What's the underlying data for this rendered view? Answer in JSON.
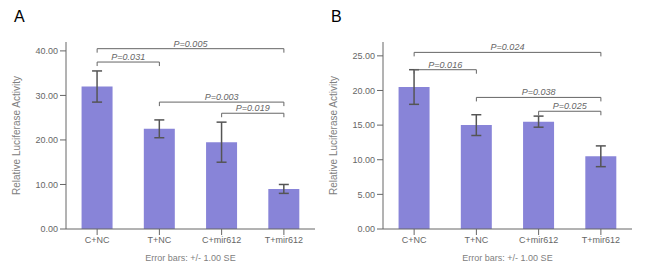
{
  "chart_data": [
    {
      "type": "bar",
      "title": "A",
      "categories": [
        "C+NC",
        "T+NC",
        "C+mir612",
        "T+mir612"
      ],
      "values": [
        32.0,
        22.5,
        19.5,
        9.0
      ],
      "errors": [
        3.5,
        2.0,
        4.5,
        1.0
      ],
      "ylim": [
        0,
        42
      ],
      "yticks": [
        {
          "value": 0,
          "label": "0.00"
        },
        {
          "value": 10,
          "label": "10.00"
        },
        {
          "value": 20,
          "label": "20.00"
        },
        {
          "value": 30,
          "label": "30.00"
        },
        {
          "value": 40,
          "label": "40.00"
        }
      ],
      "ylabel": "Relative Luciferase Activity",
      "xlabel": "Error bars: +/- 1.00 SE",
      "color": "#8884d8",
      "significance": [
        {
          "x1": "C+NC",
          "x2": "T+NC",
          "y": 37.5,
          "label": "P=0.031",
          "color": "#666666"
        },
        {
          "x1": "C+NC",
          "x2": "T+mir612",
          "y": 40.5,
          "label": "P=0.005",
          "color": "#666666"
        },
        {
          "x1": "T+NC",
          "x2": "T+mir612",
          "y": 28.5,
          "label": "P=0.003",
          "color": "#666666"
        },
        {
          "x1": "C+mir612",
          "x2": "T+mir612",
          "y": 26.0,
          "label": "P=0.019",
          "color": "#666666"
        }
      ]
    },
    {
      "type": "bar",
      "title": "B",
      "categories": [
        "C+NC",
        "T+NC",
        "C+mir612",
        "T+mir612"
      ],
      "values": [
        20.5,
        15.0,
        15.5,
        10.5
      ],
      "errors": [
        2.5,
        1.5,
        0.8,
        1.5
      ],
      "ylim": [
        0,
        27
      ],
      "yticks": [
        {
          "value": 0,
          "label": "0.00"
        },
        {
          "value": 5,
          "label": "5.00"
        },
        {
          "value": 10,
          "label": "10.00"
        },
        {
          "value": 15,
          "label": "15.00"
        },
        {
          "value": 20,
          "label": "20.00"
        },
        {
          "value": 25,
          "label": "25.00"
        }
      ],
      "ylabel": "Relative Luciferase Activity",
      "xlabel": "Error bars: +/- 1.00 SE",
      "color": "#8884d8",
      "significance": [
        {
          "x1": "C+NC",
          "x2": "T+NC",
          "y": 23.0,
          "label": "P=0.016",
          "color": "#666666"
        },
        {
          "x1": "C+NC",
          "x2": "T+mir612",
          "y": 25.5,
          "label": "P=0.024",
          "color": "#666666"
        },
        {
          "x1": "T+NC",
          "x2": "T+mir612",
          "y": 19.0,
          "label": "P=0.038",
          "color": "#666666"
        },
        {
          "x1": "C+mir612",
          "x2": "T+mir612",
          "y": 17.0,
          "label": "P=0.025",
          "color": "#666666"
        }
      ]
    }
  ]
}
